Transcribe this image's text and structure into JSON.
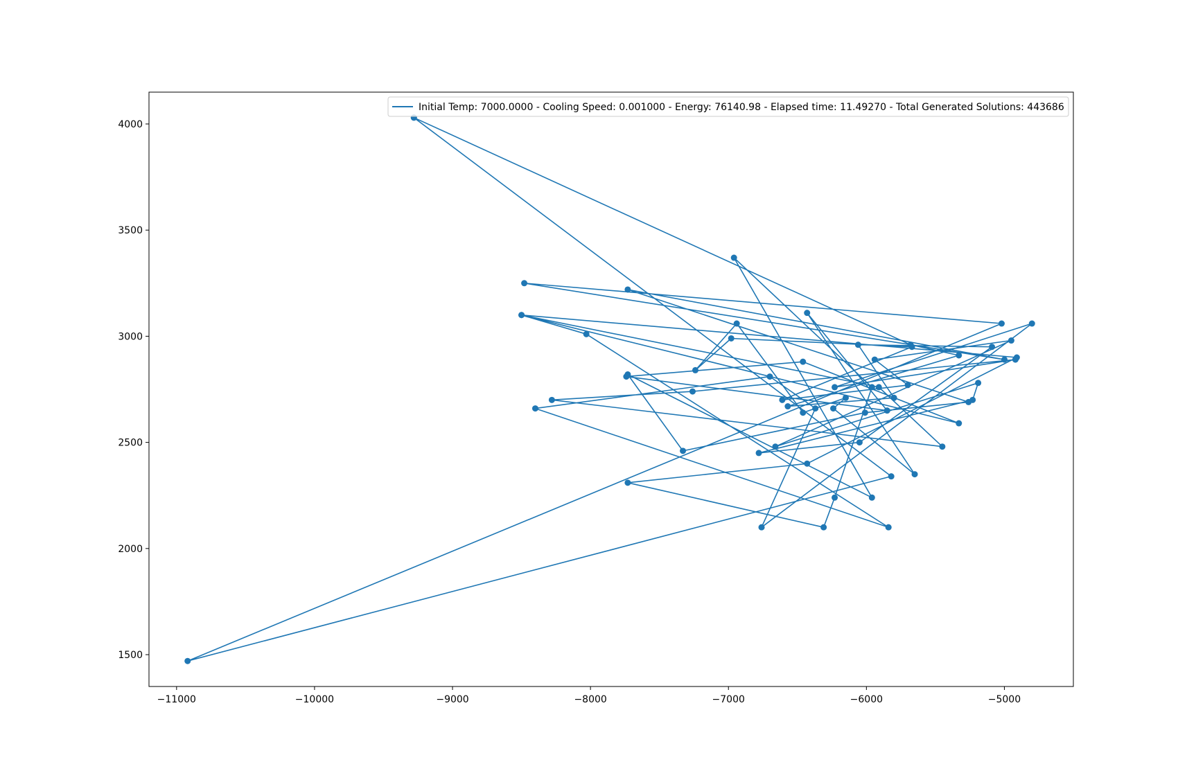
{
  "chart_data": {
    "type": "line",
    "markers": true,
    "xlim": [
      -11200,
      -4500
    ],
    "ylim": [
      1350,
      4150
    ],
    "xticks": [
      -11000,
      -10000,
      -9000,
      -8000,
      -7000,
      -6000,
      -5000
    ],
    "xtick_labels": [
      "−11000",
      "−10000",
      "−9000",
      "−8000",
      "−7000",
      "−6000",
      "−5000"
    ],
    "yticks": [
      1500,
      2000,
      2500,
      3000,
      3500,
      4000
    ],
    "ytick_labels": [
      "1500",
      "2000",
      "2500",
      "3000",
      "3500",
      "4000"
    ],
    "grid": false,
    "legend_position": "top-right",
    "series": [
      {
        "name": "Initial Temp: 7000.0000 - Cooling Speed: 0.001000 - Energy: 76140.98 - Elapsed time: 11.49270 - Total Generated Solutions: 443686",
        "color": "#1f77b4",
        "x": [
          -9280,
          -5820,
          -10920,
          -5020,
          -8480,
          -5000,
          -7730,
          -5260,
          -6010,
          -7330,
          -7730,
          -5960,
          -6960,
          -5960,
          -6230,
          -6310,
          -7730,
          -6430,
          -4910,
          -8500,
          -5910,
          -5450,
          -8280,
          -7260,
          -4920,
          -6230,
          -4800,
          -6760,
          -6370,
          -6700,
          -8400,
          -5840,
          -8030,
          -8500,
          -5330,
          -6460,
          -7740,
          -5850,
          -6430,
          -5650,
          -6240,
          -6150,
          -6460,
          -6940,
          -7240,
          -6980,
          -5670,
          -6610,
          -5700,
          -5940,
          -4950,
          -6660,
          -5190,
          -5230,
          -6780,
          -6050,
          -5090,
          -6060,
          -5800,
          -6570,
          -5330,
          -5680,
          -9280
        ],
        "y": [
          4030,
          2340,
          1470,
          3060,
          3250,
          2890,
          3220,
          2690,
          2640,
          2460,
          2820,
          2240,
          3370,
          2760,
          2240,
          2100,
          2310,
          2400,
          2900,
          3100,
          2760,
          2480,
          2700,
          2740,
          2890,
          2760,
          3060,
          2100,
          2660,
          2810,
          2660,
          2100,
          3010,
          3100,
          2590,
          2880,
          2810,
          2650,
          3110,
          2350,
          2660,
          2710,
          2640,
          3060,
          2840,
          2990,
          2950,
          2700,
          2770,
          2890,
          2980,
          2480,
          2780,
          2700,
          2450,
          2500,
          2950,
          2960,
          2710,
          2670,
          2910,
          2960,
          4030
        ]
      }
    ]
  }
}
